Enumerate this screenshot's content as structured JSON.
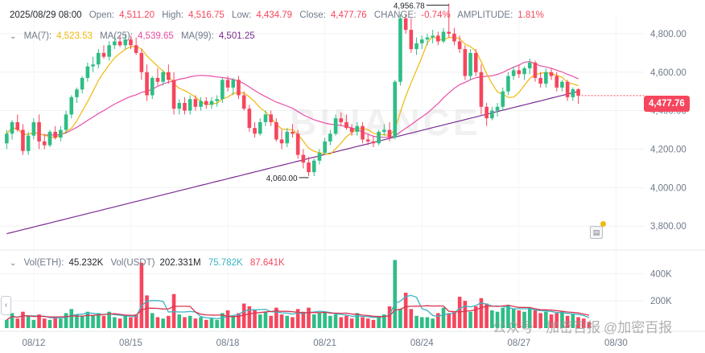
{
  "header": {
    "date": "2025/08/29 08:00",
    "open_label": "Open:",
    "open": "4,511.20",
    "high_label": "High:",
    "high": "4,516.75",
    "low_label": "Low:",
    "low": "4,434.79",
    "close_label": "Close:",
    "close": "4,477.76",
    "change_label": "CHANGE:",
    "change": "-0.74%",
    "amplitude_label": "AMPLITUDE:",
    "amplitude": "1.81%"
  },
  "ma_row": {
    "ma7_label": "MA(7):",
    "ma7": "4,523.53",
    "ma25_label": "MA(25):",
    "ma25": "4,539.65",
    "ma99_label": "MA(99):",
    "ma99": "4,501.25"
  },
  "vol_row": {
    "vol_eth_label": "Vol(ETH):",
    "vol_eth": "45.232K",
    "vol_usdt_label": "Vol(USDT)",
    "vol_usdt": "202.331M",
    "vol_ma1": "75.782K",
    "vol_ma2": "87.641K"
  },
  "last_price": "4,477.76",
  "annotations": {
    "high_marker": "4,956.78",
    "low_marker": "4,060.00"
  },
  "brand_watermark": "BINANCE",
  "overlay_watermark_1": "公众号 · 加密百报",
  "overlay_watermark_2": "@加密百报",
  "side_toggle": "‹",
  "colors": {
    "up": "#2ebd85",
    "down": "#f6465d",
    "ma7": "#f0b90b",
    "ma25": "#e84fa6",
    "ma99": "#7b2b91",
    "vol_ma1": "#3bb3c3",
    "vol_ma2": "#d9334f"
  },
  "chart_data": {
    "type": "candlestick",
    "interval_hours": 4,
    "x_axis": {
      "ticks": [
        "08/12",
        "08/15",
        "08/18",
        "08/21",
        "08/24",
        "08/27",
        "08/30"
      ]
    },
    "price_axis": {
      "ticks": [
        "3,800.00",
        "4,000.00",
        "4,200.00",
        "4,400.00",
        "4,600.00",
        "4,800.00"
      ],
      "range": [
        3700,
        4900
      ]
    },
    "volume_axis": {
      "ticks": [
        "200K",
        "400K"
      ],
      "range": [
        0,
        520000
      ]
    },
    "candles": [
      {
        "o": 4230,
        "h": 4300,
        "l": 4200,
        "c": 4280
      },
      {
        "o": 4280,
        "h": 4350,
        "l": 4250,
        "c": 4340
      },
      {
        "o": 4340,
        "h": 4380,
        "l": 4290,
        "c": 4300
      },
      {
        "o": 4300,
        "h": 4330,
        "l": 4170,
        "c": 4190
      },
      {
        "o": 4190,
        "h": 4290,
        "l": 4170,
        "c": 4270
      },
      {
        "o": 4270,
        "h": 4360,
        "l": 4250,
        "c": 4340
      },
      {
        "o": 4340,
        "h": 4380,
        "l": 4200,
        "c": 4240
      },
      {
        "o": 4240,
        "h": 4280,
        "l": 4200,
        "c": 4220
      },
      {
        "o": 4220,
        "h": 4300,
        "l": 4210,
        "c": 4290
      },
      {
        "o": 4290,
        "h": 4320,
        "l": 4250,
        "c": 4260
      },
      {
        "o": 4260,
        "h": 4320,
        "l": 4240,
        "c": 4300
      },
      {
        "o": 4300,
        "h": 4400,
        "l": 4280,
        "c": 4380
      },
      {
        "o": 4380,
        "h": 4480,
        "l": 4360,
        "c": 4470
      },
      {
        "o": 4470,
        "h": 4520,
        "l": 4440,
        "c": 4510
      },
      {
        "o": 4510,
        "h": 4580,
        "l": 4490,
        "c": 4570
      },
      {
        "o": 4570,
        "h": 4650,
        "l": 4550,
        "c": 4630
      },
      {
        "o": 4630,
        "h": 4680,
        "l": 4600,
        "c": 4640
      },
      {
        "o": 4640,
        "h": 4720,
        "l": 4620,
        "c": 4700
      },
      {
        "o": 4700,
        "h": 4740,
        "l": 4670,
        "c": 4680
      },
      {
        "o": 4680,
        "h": 4760,
        "l": 4660,
        "c": 4740
      },
      {
        "o": 4740,
        "h": 4790,
        "l": 4720,
        "c": 4760
      },
      {
        "o": 4760,
        "h": 4790,
        "l": 4730,
        "c": 4740
      },
      {
        "o": 4740,
        "h": 4800,
        "l": 4720,
        "c": 4770
      },
      {
        "o": 4770,
        "h": 4790,
        "l": 4720,
        "c": 4740
      },
      {
        "o": 4740,
        "h": 4780,
        "l": 4690,
        "c": 4700
      },
      {
        "o": 4700,
        "h": 4720,
        "l": 4560,
        "c": 4600
      },
      {
        "o": 4600,
        "h": 4640,
        "l": 4450,
        "c": 4480
      },
      {
        "o": 4480,
        "h": 4580,
        "l": 4460,
        "c": 4570
      },
      {
        "o": 4570,
        "h": 4620,
        "l": 4530,
        "c": 4550
      },
      {
        "o": 4550,
        "h": 4610,
        "l": 4530,
        "c": 4600
      },
      {
        "o": 4600,
        "h": 4640,
        "l": 4540,
        "c": 4560
      },
      {
        "o": 4560,
        "h": 4600,
        "l": 4380,
        "c": 4410
      },
      {
        "o": 4410,
        "h": 4460,
        "l": 4380,
        "c": 4440
      },
      {
        "o": 4440,
        "h": 4470,
        "l": 4380,
        "c": 4400
      },
      {
        "o": 4400,
        "h": 4480,
        "l": 4380,
        "c": 4460
      },
      {
        "o": 4460,
        "h": 4480,
        "l": 4400,
        "c": 4420
      },
      {
        "o": 4420,
        "h": 4470,
        "l": 4400,
        "c": 4450
      },
      {
        "o": 4450,
        "h": 4470,
        "l": 4410,
        "c": 4430
      },
      {
        "o": 4430,
        "h": 4470,
        "l": 4410,
        "c": 4450
      },
      {
        "o": 4450,
        "h": 4480,
        "l": 4420,
        "c": 4460
      },
      {
        "o": 4460,
        "h": 4570,
        "l": 4440,
        "c": 4560
      },
      {
        "o": 4560,
        "h": 4580,
        "l": 4500,
        "c": 4520
      },
      {
        "o": 4520,
        "h": 4570,
        "l": 4480,
        "c": 4560
      },
      {
        "o": 4560,
        "h": 4580,
        "l": 4460,
        "c": 4480
      },
      {
        "o": 4480,
        "h": 4500,
        "l": 4400,
        "c": 4410
      },
      {
        "o": 4410,
        "h": 4430,
        "l": 4290,
        "c": 4310
      },
      {
        "o": 4310,
        "h": 4340,
        "l": 4260,
        "c": 4280
      },
      {
        "o": 4280,
        "h": 4360,
        "l": 4270,
        "c": 4340
      },
      {
        "o": 4340,
        "h": 4400,
        "l": 4320,
        "c": 4380
      },
      {
        "o": 4380,
        "h": 4400,
        "l": 4320,
        "c": 4340
      },
      {
        "o": 4340,
        "h": 4360,
        "l": 4240,
        "c": 4250
      },
      {
        "o": 4250,
        "h": 4300,
        "l": 4200,
        "c": 4230
      },
      {
        "o": 4230,
        "h": 4310,
        "l": 4210,
        "c": 4290
      },
      {
        "o": 4290,
        "h": 4330,
        "l": 4260,
        "c": 4280
      },
      {
        "o": 4280,
        "h": 4300,
        "l": 4150,
        "c": 4170
      },
      {
        "o": 4170,
        "h": 4200,
        "l": 4100,
        "c": 4130
      },
      {
        "o": 4130,
        "h": 4160,
        "l": 4060,
        "c": 4080
      },
      {
        "o": 4080,
        "h": 4150,
        "l": 4060,
        "c": 4140
      },
      {
        "o": 4140,
        "h": 4200,
        "l": 4120,
        "c": 4180
      },
      {
        "o": 4180,
        "h": 4260,
        "l": 4170,
        "c": 4240
      },
      {
        "o": 4240,
        "h": 4300,
        "l": 4220,
        "c": 4280
      },
      {
        "o": 4280,
        "h": 4380,
        "l": 4270,
        "c": 4360
      },
      {
        "o": 4360,
        "h": 4390,
        "l": 4320,
        "c": 4340
      },
      {
        "o": 4340,
        "h": 4380,
        "l": 4300,
        "c": 4310
      },
      {
        "o": 4310,
        "h": 4330,
        "l": 4270,
        "c": 4290
      },
      {
        "o": 4290,
        "h": 4340,
        "l": 4270,
        "c": 4320
      },
      {
        "o": 4320,
        "h": 4340,
        "l": 4230,
        "c": 4250
      },
      {
        "o": 4250,
        "h": 4280,
        "l": 4220,
        "c": 4240
      },
      {
        "o": 4240,
        "h": 4270,
        "l": 4210,
        "c": 4230
      },
      {
        "o": 4230,
        "h": 4300,
        "l": 4220,
        "c": 4290
      },
      {
        "o": 4290,
        "h": 4330,
        "l": 4270,
        "c": 4300
      },
      {
        "o": 4300,
        "h": 4340,
        "l": 4240,
        "c": 4260
      },
      {
        "o": 4260,
        "h": 4560,
        "l": 4250,
        "c": 4550
      },
      {
        "o": 4550,
        "h": 4900,
        "l": 4530,
        "c": 4880
      },
      {
        "o": 4880,
        "h": 4900,
        "l": 4800,
        "c": 4820
      },
      {
        "o": 4820,
        "h": 4880,
        "l": 4700,
        "c": 4720
      },
      {
        "o": 4720,
        "h": 4780,
        "l": 4690,
        "c": 4750
      },
      {
        "o": 4750,
        "h": 4790,
        "l": 4720,
        "c": 4770
      },
      {
        "o": 4770,
        "h": 4800,
        "l": 4740,
        "c": 4780
      },
      {
        "o": 4780,
        "h": 4820,
        "l": 4750,
        "c": 4790
      },
      {
        "o": 4790,
        "h": 4810,
        "l": 4740,
        "c": 4760
      },
      {
        "o": 4760,
        "h": 4830,
        "l": 4750,
        "c": 4810
      },
      {
        "o": 4810,
        "h": 4957,
        "l": 4780,
        "c": 4800
      },
      {
        "o": 4800,
        "h": 4830,
        "l": 4740,
        "c": 4760
      },
      {
        "o": 4760,
        "h": 4790,
        "l": 4700,
        "c": 4720
      },
      {
        "o": 4720,
        "h": 4740,
        "l": 4560,
        "c": 4580
      },
      {
        "o": 4580,
        "h": 4720,
        "l": 4560,
        "c": 4700
      },
      {
        "o": 4700,
        "h": 4720,
        "l": 4580,
        "c": 4600
      },
      {
        "o": 4600,
        "h": 4640,
        "l": 4380,
        "c": 4420
      },
      {
        "o": 4420,
        "h": 4440,
        "l": 4320,
        "c": 4360
      },
      {
        "o": 4360,
        "h": 4420,
        "l": 4350,
        "c": 4400
      },
      {
        "o": 4400,
        "h": 4440,
        "l": 4370,
        "c": 4420
      },
      {
        "o": 4420,
        "h": 4520,
        "l": 4400,
        "c": 4500
      },
      {
        "o": 4500,
        "h": 4600,
        "l": 4480,
        "c": 4580
      },
      {
        "o": 4580,
        "h": 4630,
        "l": 4560,
        "c": 4610
      },
      {
        "o": 4610,
        "h": 4640,
        "l": 4570,
        "c": 4590
      },
      {
        "o": 4590,
        "h": 4630,
        "l": 4560,
        "c": 4620
      },
      {
        "o": 4620,
        "h": 4670,
        "l": 4590,
        "c": 4650
      },
      {
        "o": 4650,
        "h": 4660,
        "l": 4550,
        "c": 4570
      },
      {
        "o": 4570,
        "h": 4600,
        "l": 4520,
        "c": 4540
      },
      {
        "o": 4540,
        "h": 4620,
        "l": 4520,
        "c": 4600
      },
      {
        "o": 4600,
        "h": 4620,
        "l": 4560,
        "c": 4580
      },
      {
        "o": 4580,
        "h": 4600,
        "l": 4500,
        "c": 4520
      },
      {
        "o": 4520,
        "h": 4560,
        "l": 4500,
        "c": 4550
      },
      {
        "o": 4550,
        "h": 4560,
        "l": 4450,
        "c": 4470
      },
      {
        "o": 4470,
        "h": 4520,
        "l": 4450,
        "c": 4511
      },
      {
        "o": 4511,
        "h": 4517,
        "l": 4435,
        "c": 4478
      }
    ],
    "ma7": {
      "value": 4523.53
    },
    "ma25": {
      "value": 4539.65
    },
    "ma99": {
      "value": 4501.25
    },
    "volumes": [
      60000,
      110000,
      70000,
      120000,
      90000,
      60000,
      100000,
      70000,
      60000,
      80000,
      70000,
      110000,
      140000,
      100000,
      90000,
      120000,
      90000,
      110000,
      90000,
      120000,
      80000,
      70000,
      90000,
      80000,
      100000,
      480000,
      240000,
      110000,
      80000,
      70000,
      90000,
      250000,
      100000,
      80000,
      90000,
      70000,
      80000,
      60000,
      70000,
      60000,
      110000,
      130000,
      90000,
      110000,
      180000,
      160000,
      130000,
      100000,
      120000,
      90000,
      150000,
      100000,
      90000,
      80000,
      140000,
      120000,
      150000,
      100000,
      110000,
      120000,
      90000,
      100000,
      80000,
      90000,
      70000,
      110000,
      80000,
      70000,
      60000,
      90000,
      100000,
      160000,
      500000,
      140000,
      260000,
      140000,
      90000,
      80000,
      80000,
      70000,
      110000,
      150000,
      110000,
      120000,
      230000,
      200000,
      120000,
      160000,
      220000,
      180000,
      130000,
      120000,
      150000,
      170000,
      140000,
      130000,
      120000,
      150000,
      130000,
      110000,
      120000,
      100000,
      110000,
      120000,
      90000,
      100000,
      80000,
      70000,
      45000
    ]
  }
}
